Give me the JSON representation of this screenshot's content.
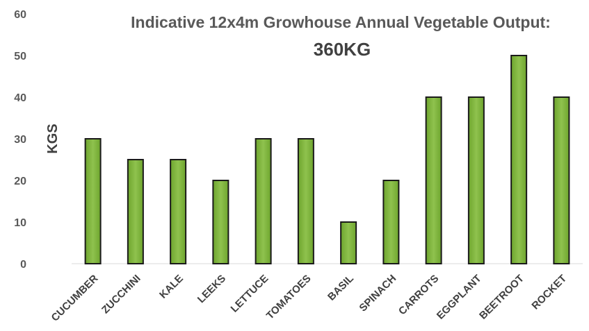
{
  "chart_data": {
    "type": "bar",
    "title": "Indicative 12x4m Growhouse Annual Vegetable Output:",
    "subtitle": "360KG",
    "xlabel": "",
    "ylabel": "KGS",
    "ylim": [
      0,
      60
    ],
    "yticks": [
      "0",
      "10",
      "20",
      "30",
      "40",
      "50",
      "60"
    ],
    "grid": "none",
    "legend": "none",
    "bar_color": "#7bb33a",
    "bar_edge_color": "#1a1a1a",
    "categories": [
      "CUCUMBER",
      "ZUCCHINI",
      "KALE",
      "LEEKS",
      "LETTUCE",
      "TOMATOES",
      "BASIL",
      "SPINACH",
      "CARROTS",
      "EGGPLANT",
      "BEETROOT",
      "ROCKET"
    ],
    "values": [
      30,
      25,
      25,
      20,
      30,
      30,
      10,
      20,
      40,
      40,
      50,
      40
    ]
  }
}
